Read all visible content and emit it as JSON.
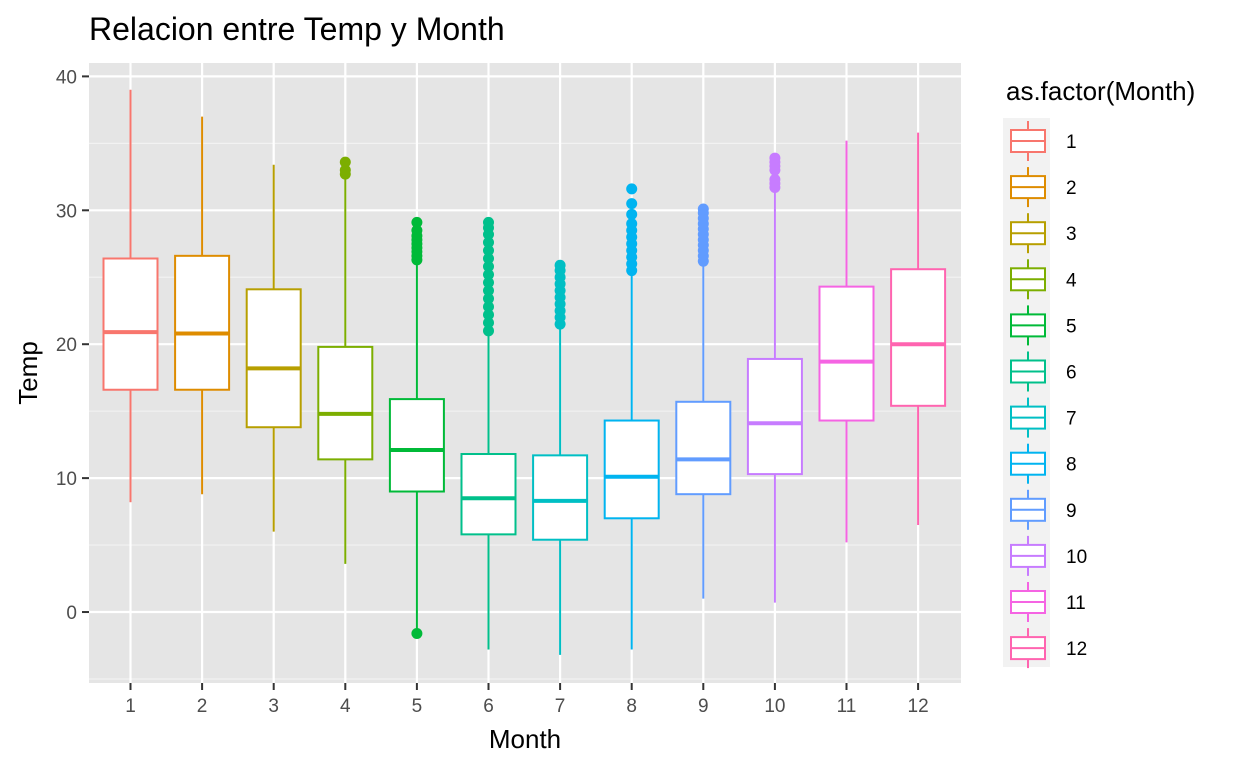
{
  "chart_data": {
    "type": "boxplot",
    "title": "Relacion entre Temp y Month",
    "xlabel": "Month",
    "ylabel": "Temp",
    "ylim": [
      -5.3,
      41
    ],
    "yticks": [
      0,
      10,
      20,
      30,
      40
    ],
    "categories": [
      "1",
      "2",
      "3",
      "4",
      "5",
      "6",
      "7",
      "8",
      "9",
      "10",
      "11",
      "12"
    ],
    "legend_title": "as.factor(Month)",
    "legend_position": "right",
    "grid": true,
    "background": "#e5e5e5",
    "colors": [
      "#f8766d",
      "#de8c00",
      "#b79f00",
      "#7cae00",
      "#00ba38",
      "#00c08b",
      "#00bfc4",
      "#00b4f0",
      "#619cff",
      "#c77cff",
      "#f564e3",
      "#ff64b0"
    ],
    "boxes": [
      {
        "month": "1",
        "whisker_low": 8.2,
        "q1": 16.6,
        "median": 20.9,
        "q3": 26.4,
        "whisker_high": 39.0,
        "outliers": []
      },
      {
        "month": "2",
        "whisker_low": 8.8,
        "q1": 16.6,
        "median": 20.8,
        "q3": 26.6,
        "whisker_high": 37.0,
        "outliers": []
      },
      {
        "month": "3",
        "whisker_low": 6.0,
        "q1": 13.8,
        "median": 18.2,
        "q3": 24.1,
        "whisker_high": 33.4,
        "outliers": []
      },
      {
        "month": "4",
        "whisker_low": 3.6,
        "q1": 11.4,
        "median": 14.8,
        "q3": 19.8,
        "whisker_high": 32.3,
        "outliers": [
          32.7,
          33.0,
          33.6
        ]
      },
      {
        "month": "5",
        "whisker_low": -1.6,
        "q1": 9.0,
        "median": 12.1,
        "q3": 15.9,
        "whisker_high": 26.0,
        "outliers": [
          -1.6,
          26.3,
          26.6,
          26.9,
          27.2,
          27.5,
          27.8,
          28.1,
          28.5,
          29.1
        ]
      },
      {
        "month": "6",
        "whisker_low": -2.8,
        "q1": 5.8,
        "median": 8.5,
        "q3": 11.8,
        "whisker_high": 20.8,
        "outliers": [
          21.0,
          21.6,
          22.2,
          22.8,
          23.4,
          24.0,
          24.6,
          25.2,
          25.8,
          26.4,
          27.0,
          27.6,
          28.2,
          28.7,
          29.1
        ]
      },
      {
        "month": "7",
        "whisker_low": -3.2,
        "q1": 5.4,
        "median": 8.3,
        "q3": 11.7,
        "whisker_high": 21.2,
        "outliers": [
          21.5,
          22.0,
          22.5,
          23.0,
          23.5,
          24.0,
          24.5,
          25.0,
          25.5,
          25.9
        ]
      },
      {
        "month": "8",
        "whisker_low": -2.8,
        "q1": 7.0,
        "median": 10.1,
        "q3": 14.3,
        "whisker_high": 25.2,
        "outliers": [
          25.5,
          26.0,
          26.5,
          27.0,
          27.5,
          28.0,
          28.5,
          29.0,
          29.7,
          30.5,
          31.6
        ]
      },
      {
        "month": "9",
        "whisker_low": 1.0,
        "q1": 8.8,
        "median": 11.4,
        "q3": 15.7,
        "whisker_high": 25.9,
        "outliers": [
          26.2,
          26.6,
          27.0,
          27.4,
          27.8,
          28.2,
          28.6,
          29.0,
          29.4,
          29.8,
          30.1
        ]
      },
      {
        "month": "10",
        "whisker_low": 0.7,
        "q1": 10.3,
        "median": 14.1,
        "q3": 18.9,
        "whisker_high": 31.4,
        "outliers": [
          31.7,
          32.0,
          32.3,
          33.0,
          33.3,
          33.6,
          33.9
        ]
      },
      {
        "month": "11",
        "whisker_low": 5.2,
        "q1": 14.3,
        "median": 18.7,
        "q3": 24.3,
        "whisker_high": 35.2,
        "outliers": []
      },
      {
        "month": "12",
        "whisker_low": 6.5,
        "q1": 15.4,
        "median": 20.0,
        "q3": 25.6,
        "whisker_high": 35.8,
        "outliers": []
      }
    ]
  }
}
